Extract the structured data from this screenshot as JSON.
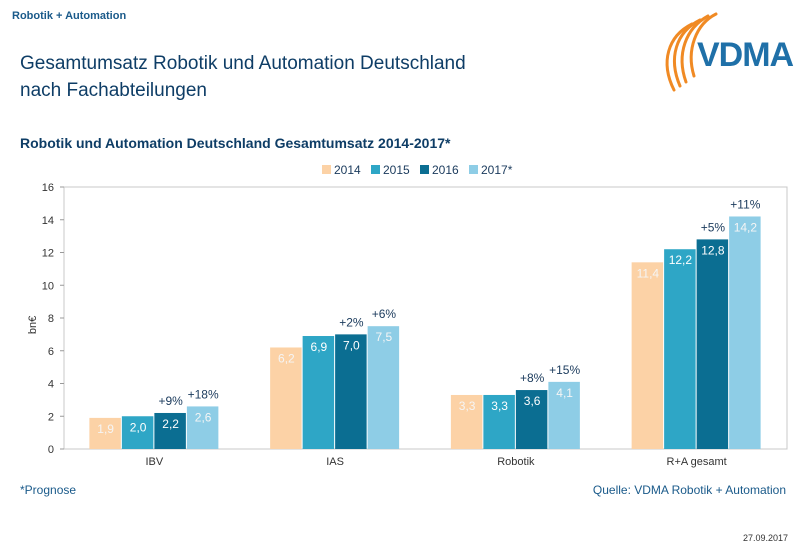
{
  "header": {
    "kicker": "Robotik + Automation",
    "title_line1": "Gesamtumsatz Robotik und Automation Deutschland",
    "title_line2": "nach Fachabteilungen",
    "logo_text": "VDMA"
  },
  "footer": {
    "footnote": "*Prognose",
    "source": "Quelle: VDMA Robotik + Automation",
    "date": "27.09.2017"
  },
  "colors": {
    "s2014": "#fcd2a6",
    "s2015": "#2ea6c6",
    "s2016": "#0b6e92",
    "s2017": "#8ecde6",
    "accent": "#f08a24"
  },
  "chart_data": {
    "type": "bar",
    "title": "Robotik und Automation Deutschland Gesamtumsatz  2014-2017*",
    "xlabel": "",
    "ylabel": "bn€",
    "ylim": [
      0,
      16
    ],
    "yticks": [
      "0",
      "2",
      "4",
      "6",
      "8",
      "10",
      "12",
      "14",
      "16"
    ],
    "legend_position": "top-center",
    "categories": [
      "IBV",
      "IAS",
      "Robotik",
      "R+A gesamt"
    ],
    "series": [
      {
        "name": "2014",
        "values": [
          1.9,
          6.2,
          3.3,
          11.4
        ],
        "labels": [
          "1,9",
          "6,2",
          "3,3",
          "11,4"
        ],
        "growth": [
          "",
          "",
          "",
          ""
        ]
      },
      {
        "name": "2015",
        "values": [
          2.0,
          6.9,
          3.3,
          12.2
        ],
        "labels": [
          "2,0",
          "6,9",
          "3,3",
          "12,2"
        ],
        "growth": [
          "",
          "",
          "",
          ""
        ]
      },
      {
        "name": "2016",
        "values": [
          2.2,
          7.0,
          3.6,
          12.8
        ],
        "labels": [
          "2,2",
          "7,0",
          "3,6",
          "12,8"
        ],
        "growth": [
          "+9%",
          "+2%",
          "+8%",
          "+5%"
        ]
      },
      {
        "name": "2017*",
        "values": [
          2.6,
          7.5,
          4.1,
          14.2
        ],
        "labels": [
          "2,6",
          "7,5",
          "4,1",
          "14,2"
        ],
        "growth": [
          "+18%",
          "+6%",
          "+15%",
          "+11%"
        ]
      }
    ]
  }
}
